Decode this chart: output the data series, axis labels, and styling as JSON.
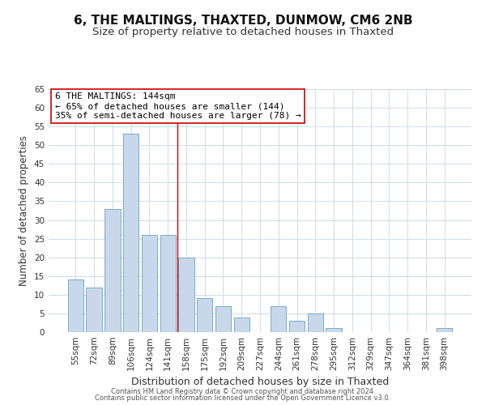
{
  "title": "6, THE MALTINGS, THAXTED, DUNMOW, CM6 2NB",
  "subtitle": "Size of property relative to detached houses in Thaxted",
  "xlabel": "Distribution of detached houses by size in Thaxted",
  "ylabel": "Number of detached properties",
  "bar_color": "#c8d8ea",
  "bar_edge_color": "#7aaac8",
  "categories": [
    "55sqm",
    "72sqm",
    "89sqm",
    "106sqm",
    "124sqm",
    "141sqm",
    "158sqm",
    "175sqm",
    "192sqm",
    "209sqm",
    "227sqm",
    "244sqm",
    "261sqm",
    "278sqm",
    "295sqm",
    "312sqm",
    "329sqm",
    "347sqm",
    "364sqm",
    "381sqm",
    "398sqm"
  ],
  "values": [
    14,
    12,
    33,
    53,
    26,
    26,
    20,
    9,
    7,
    4,
    0,
    7,
    3,
    5,
    1,
    0,
    0,
    0,
    0,
    0,
    1
  ],
  "ylim": [
    0,
    65
  ],
  "yticks": [
    0,
    5,
    10,
    15,
    20,
    25,
    30,
    35,
    40,
    45,
    50,
    55,
    60,
    65
  ],
  "reference_line_index": 5.5,
  "reference_line_color": "#cc0000",
  "annotation_line1": "6 THE MALTINGS: 144sqm",
  "annotation_line2": "← 65% of detached houses are smaller (144)",
  "annotation_line3": "35% of semi-detached houses are larger (78) →",
  "annotation_box_color": "#ffffff",
  "annotation_box_edge_color": "#cc0000",
  "footer_line1": "Contains HM Land Registry data © Crown copyright and database right 2024.",
  "footer_line2": "Contains public sector information licensed under the Open Government Licence v3.0.",
  "bg_color": "#ffffff",
  "grid_color": "#d0dce8",
  "title_fontsize": 11,
  "subtitle_fontsize": 9.5,
  "tick_fontsize": 7.5,
  "ylabel_fontsize": 8.5,
  "xlabel_fontsize": 9,
  "annotation_fontsize": 8,
  "footer_fontsize": 6
}
